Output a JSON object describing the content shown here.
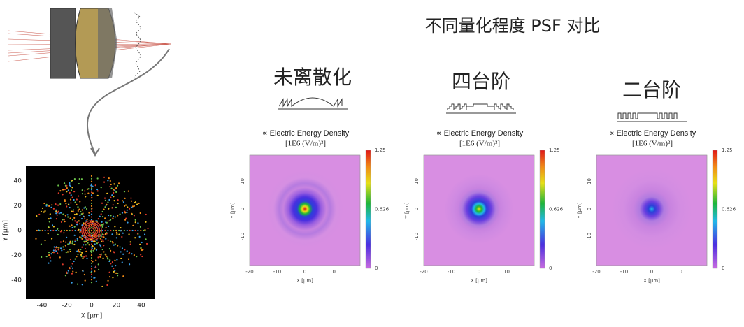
{
  "title": "不同量化程度 PSF 对比",
  "spot_diagram": {
    "x_label": "X [µm]",
    "y_label": "Y [µm]",
    "xticks": [
      -40,
      -20,
      0,
      20,
      40
    ],
    "yticks": [
      40,
      20,
      0,
      -20,
      -40
    ]
  },
  "psf_panels": [
    {
      "label": "未离散化",
      "plot_title": "∝ Electric Energy Density",
      "plot_unit": "[1E6 (V/m)²]",
      "x_label": "X [µm]",
      "y_label": "Y [µm]",
      "xticks": [
        -20,
        -10,
        0,
        10
      ],
      "yticks": [
        10,
        0,
        -10
      ],
      "colorbar_ticks": [
        1.25,
        0.626,
        0
      ]
    },
    {
      "label": "四台阶",
      "plot_title": "∝ Electric Energy Density",
      "plot_unit": "[1E6 (V/m)²]",
      "x_label": "X [µm]",
      "y_label": "Y [µm]",
      "xticks": [
        -20,
        -10,
        0,
        10
      ],
      "yticks": [
        10,
        0,
        -10
      ],
      "colorbar_ticks": [
        1.25,
        0.626,
        0
      ]
    },
    {
      "label": "二台阶",
      "plot_title": "∝ Electric Energy Density",
      "plot_unit": "[1E6 (V/m)²]",
      "x_label": "X [µm]",
      "y_label": "Y [µm]",
      "xticks": [
        -20,
        -10,
        0,
        10
      ],
      "yticks": [
        10,
        0,
        -10
      ],
      "colorbar_ticks": [
        1.25,
        0.626,
        0
      ]
    }
  ]
}
